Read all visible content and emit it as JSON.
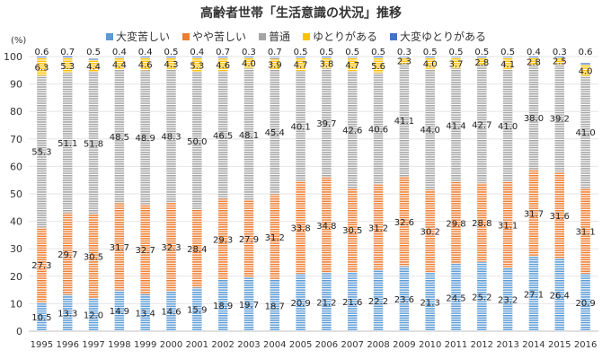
{
  "chart_data": {
    "type": "bar",
    "stacked": true,
    "title": "高齢者世帯「生活意識の状況」推移",
    "unit_label": "(%)",
    "ylim": [
      0,
      100
    ],
    "yticks": [
      0,
      10,
      20,
      30,
      40,
      50,
      60,
      70,
      80,
      90,
      100
    ],
    "legend_position": "top",
    "categories": [
      "1995",
      "1996",
      "1997",
      "1998",
      "1999",
      "2000",
      "2001",
      "2002",
      "2003",
      "2004",
      "2005",
      "2006",
      "2007",
      "2008",
      "2009",
      "2010",
      "2011",
      "2012",
      "2013",
      "2014",
      "2015",
      "2016"
    ],
    "series": [
      {
        "name": "大変苦しい",
        "color": "#5B9BD5",
        "values": [
          10.5,
          13.3,
          12.0,
          14.9,
          13.4,
          14.6,
          15.9,
          18.9,
          19.7,
          18.7,
          20.9,
          21.2,
          21.6,
          22.2,
          23.6,
          21.3,
          24.5,
          25.2,
          23.2,
          27.1,
          26.4,
          20.9
        ]
      },
      {
        "name": "やや苦しい",
        "color": "#ED7D31",
        "values": [
          27.3,
          29.7,
          30.5,
          31.7,
          32.7,
          32.3,
          28.4,
          29.3,
          27.9,
          31.2,
          33.8,
          34.8,
          30.5,
          31.2,
          32.6,
          30.2,
          29.8,
          28.8,
          31.1,
          31.7,
          31.6,
          31.1
        ]
      },
      {
        "name": "普通",
        "color": "#A5A5A5",
        "values": [
          55.3,
          51.1,
          51.8,
          48.5,
          48.9,
          48.3,
          50.0,
          46.5,
          48.1,
          45.4,
          40.1,
          39.7,
          42.6,
          40.6,
          41.1,
          44.0,
          41.4,
          42.7,
          41.0,
          38.0,
          39.2,
          41.0
        ]
      },
      {
        "name": "ゆとりがある",
        "color": "#FFC000",
        "values": [
          6.3,
          5.3,
          4.4,
          4.4,
          4.6,
          4.3,
          5.3,
          4.6,
          4.0,
          3.9,
          4.7,
          3.8,
          4.7,
          5.6,
          2.3,
          4.0,
          3.7,
          2.8,
          4.1,
          2.8,
          2.5,
          4.0
        ]
      },
      {
        "name": "大変ゆとりがある",
        "color": "#4472C4",
        "values": [
          0.6,
          0.7,
          0.5,
          0.4,
          0.4,
          0.5,
          0.4,
          0.7,
          0.3,
          0.7,
          0.5,
          0.5,
          0.5,
          0.5,
          0.3,
          0.5,
          0.5,
          0.5,
          0.5,
          0.4,
          0.3,
          0.6
        ]
      }
    ]
  }
}
